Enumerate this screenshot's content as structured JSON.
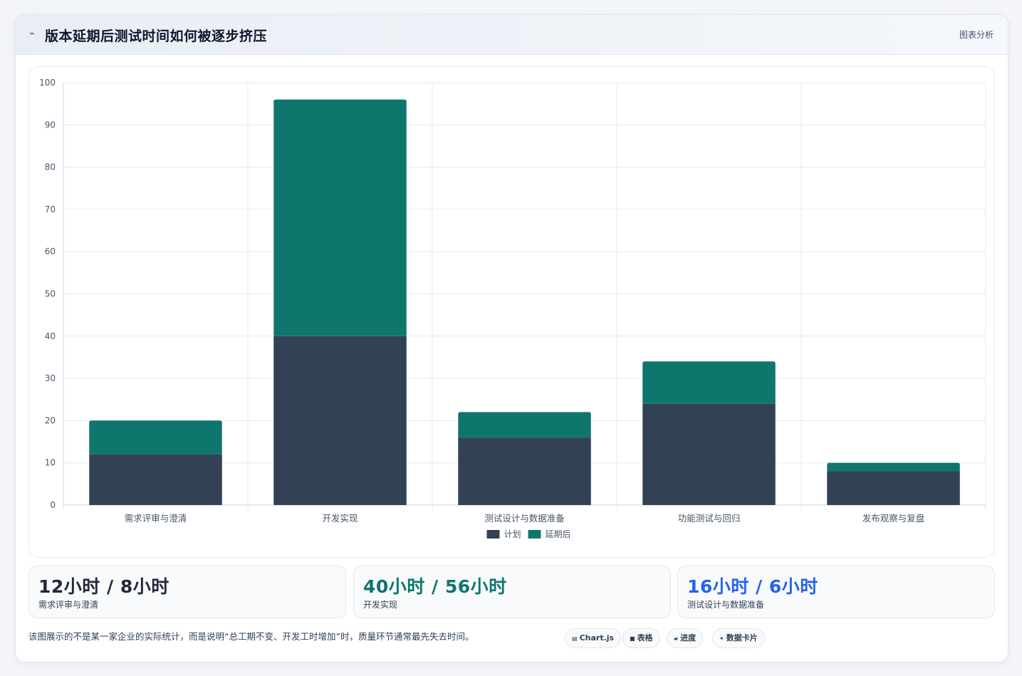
{
  "header": {
    "icon": "chart-line-icon",
    "title": "版本延期后测试时间如何被逐步挤压",
    "link": "图表分析"
  },
  "chart_data": {
    "type": "bar",
    "stacked": true,
    "categories": [
      "需求评审与澄清",
      "开发实现",
      "测试设计与数据准备",
      "功能测试与回归",
      "发布观察与复盘"
    ],
    "series": [
      {
        "name": "计划",
        "values": [
          12,
          40,
          16,
          24,
          8
        ],
        "color": "#334155"
      },
      {
        "name": "延期后",
        "values": [
          8,
          56,
          6,
          10,
          2
        ],
        "color": "#0f766e"
      }
    ],
    "ylim": [
      0,
      100
    ],
    "yticks": [
      0,
      10,
      20,
      30,
      40,
      50,
      60,
      70,
      80,
      90,
      100
    ],
    "grid": true,
    "legend": "bottom"
  },
  "stats": [
    {
      "value": "12小时 / 8小时",
      "label": "需求评审与澄清",
      "color": "#1e293b"
    },
    {
      "value": "40小时 / 56小时",
      "label": "开发实现",
      "color": "#0f766e"
    },
    {
      "value": "16小时 / 6小时",
      "label": "测试设计与数据准备",
      "color": "#2563eb"
    }
  ],
  "footnote": "该图展示的不是某一家企业的实际统计，而是说明“总工期不变、开发工时增加”时，质量环节通常最先失去时间。",
  "pills": [
    {
      "icon": "▤",
      "label": "Chart.js"
    },
    {
      "icon": "■",
      "label": "表格"
    },
    {
      "icon": "▰",
      "label": "进度"
    },
    {
      "icon": "✦",
      "label": "数据卡片"
    }
  ]
}
